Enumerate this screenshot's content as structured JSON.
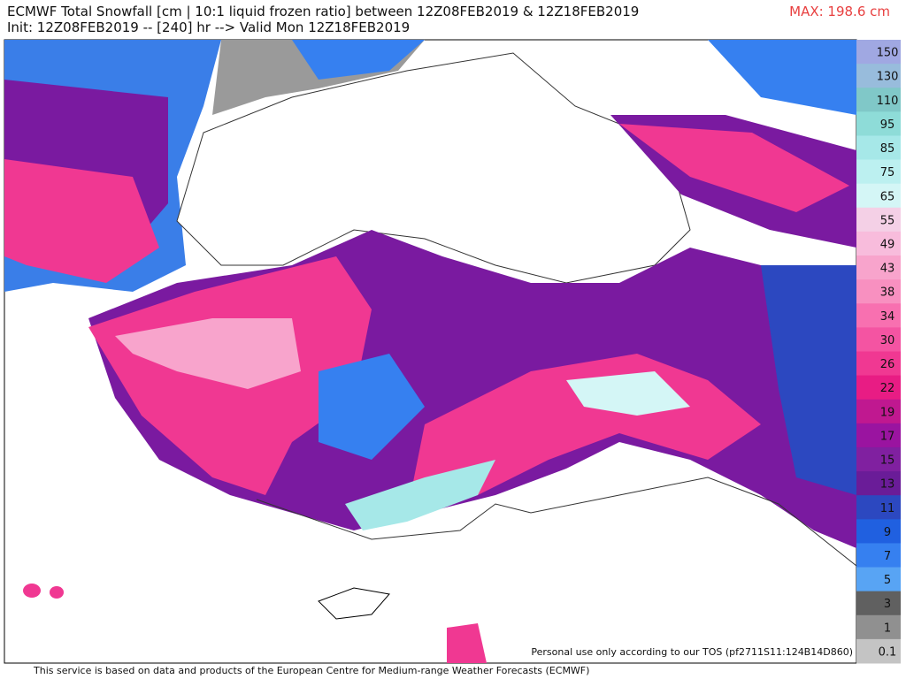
{
  "header": {
    "title": "ECMWF Total Snowfall [cm | 10:1 liquid frozen ratio] between 12Z08FEB2019 & 12Z18FEB2019",
    "subtitle": "Init: 12Z08FEB2019 -- [240] hr --> Valid Mon 12Z18FEB2019",
    "max_label": "MAX: 198.6 cm"
  },
  "colorbar": {
    "levels": [
      150,
      130,
      110,
      95,
      85,
      75,
      65,
      55,
      49,
      43,
      38,
      34,
      30,
      26,
      22,
      19,
      17,
      15,
      13,
      11,
      9,
      7,
      5,
      3,
      1,
      0.1
    ],
    "colors": [
      "#a0a8e2",
      "#98bcdc",
      "#80c8c8",
      "#8edcd8",
      "#a6e8e8",
      "#bcf0f0",
      "#d4f6f6",
      "#f4d0e6",
      "#f8bcdc",
      "#f8a4cc",
      "#f890c0",
      "#f870b0",
      "#f454a2",
      "#f03892",
      "#e81c84",
      "#c01890",
      "#9a14a0",
      "#8020a0",
      "#6a1c98",
      "#2c48c0",
      "#2060e0",
      "#3680f0",
      "#58a4f4",
      "#606060",
      "#909090",
      "#c4c4c4"
    ]
  },
  "watermark": "Personal use only according to our TOS (pf2711S11:124B14D860)",
  "footer": "This service is based on data and products of the European Centre for Medium-range Weather Forecasts (ECMWF)"
}
